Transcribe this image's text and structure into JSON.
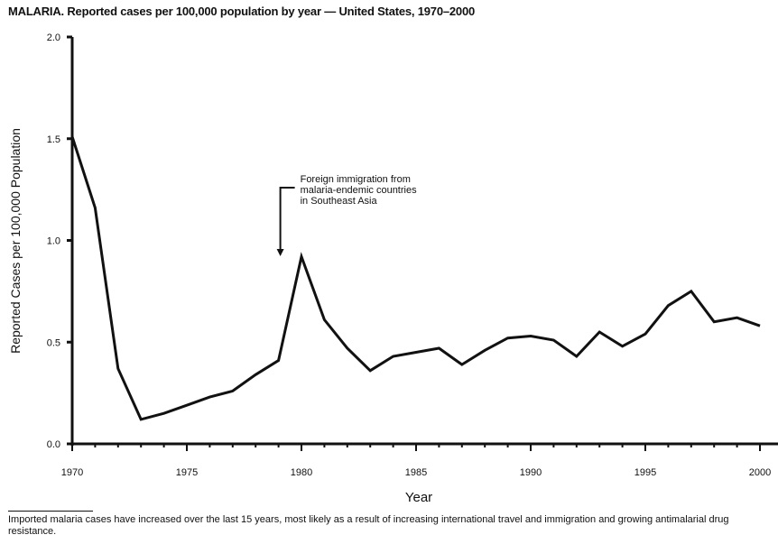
{
  "chart_data": {
    "type": "line",
    "title": "MALARIA. Reported cases per 100,000 population by year — United States, 1970–2000",
    "title_bold_prefix": "MALARIA.",
    "title_rest": " Reported cases per 100,000 population by year — United States, 1970–2000",
    "xlabel": "Year",
    "ylabel": "Reported Cases per 100,000 Population",
    "xlim": [
      1970,
      2000
    ],
    "ylim": [
      0,
      2.0
    ],
    "x_ticks": [
      "1970",
      "1975",
      "1980",
      "1985",
      "1990",
      "1995",
      "2000"
    ],
    "y_ticks": [
      "0.0",
      "0.5",
      "1.0",
      "1.5",
      "2.0"
    ],
    "grid": false,
    "x": [
      1970,
      1971,
      1972,
      1973,
      1974,
      1975,
      1976,
      1977,
      1978,
      1979,
      1980,
      1981,
      1982,
      1983,
      1984,
      1985,
      1986,
      1987,
      1988,
      1989,
      1990,
      1991,
      1992,
      1993,
      1994,
      1995,
      1996,
      1997,
      1998,
      1999,
      2000
    ],
    "values": [
      1.51,
      1.16,
      0.37,
      0.12,
      0.15,
      0.19,
      0.23,
      0.26,
      0.34,
      0.41,
      0.92,
      0.61,
      0.47,
      0.36,
      0.43,
      0.45,
      0.47,
      0.39,
      0.46,
      0.52,
      0.53,
      0.51,
      0.43,
      0.55,
      0.48,
      0.54,
      0.68,
      0.75,
      0.6,
      0.62,
      0.58
    ],
    "annotation": {
      "lines": [
        "Foreign immigration from",
        "malaria-endemic countries",
        "in Southeast Asia"
      ],
      "x": 1979
    },
    "line_color": "#111111"
  },
  "footnote": "Imported malaria cases have increased over the last 15 years, most likely as a result of increasing international travel and immigration and growing antimalarial drug resistance."
}
